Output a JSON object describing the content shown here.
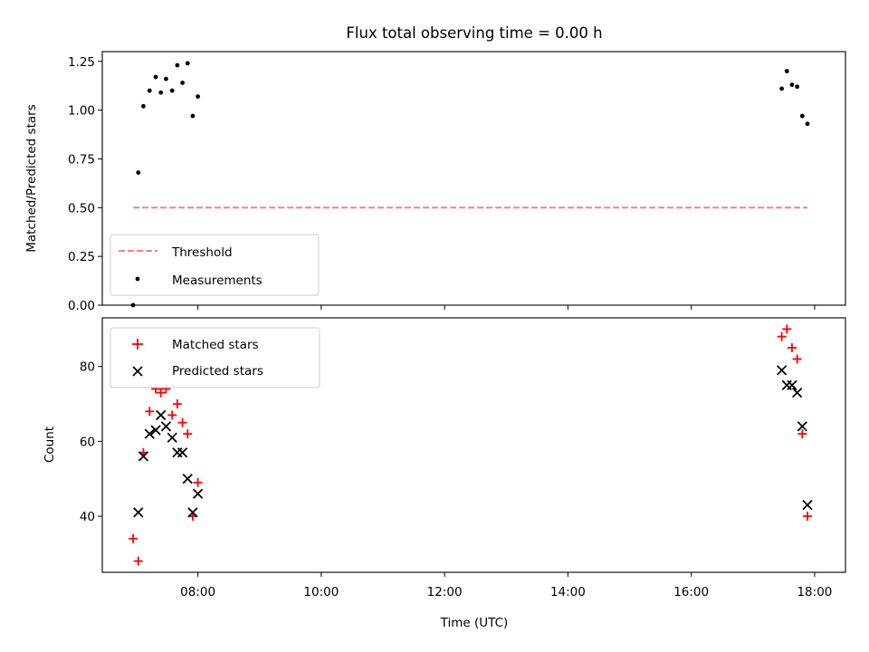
{
  "chart_data": {
    "title": "Flux total observing time = 0.00 h",
    "xlabel": "Time (UTC)",
    "x_ticks": [
      "08:00",
      "10:00",
      "12:00",
      "14:00",
      "16:00",
      "18:00"
    ],
    "xlim": [
      "06:27",
      "18:30"
    ],
    "panels": [
      {
        "type": "scatter",
        "ylabel": "Matched/Predicted stars",
        "ylim": [
          0,
          1.3
        ],
        "y_ticks": [
          "0.00",
          "0.25",
          "0.50",
          "0.75",
          "1.00",
          "1.25"
        ],
        "legend_position": "lower-left",
        "threshold": {
          "name": "Threshold",
          "value": 0.5,
          "x_start": "06:57",
          "x_end": "17:53",
          "color": "#ff7f7f"
        },
        "series": [
          {
            "name": "Measurements",
            "color": "#000000",
            "points": [
              {
                "x": "06:57",
                "y": 0.0
              },
              {
                "x": "07:02",
                "y": 0.68
              },
              {
                "x": "07:07",
                "y": 1.02
              },
              {
                "x": "07:13",
                "y": 1.1
              },
              {
                "x": "07:19",
                "y": 1.17
              },
              {
                "x": "07:24",
                "y": 1.09
              },
              {
                "x": "07:29",
                "y": 1.16
              },
              {
                "x": "07:35",
                "y": 1.1
              },
              {
                "x": "07:40",
                "y": 1.23
              },
              {
                "x": "07:45",
                "y": 1.14
              },
              {
                "x": "07:50",
                "y": 1.24
              },
              {
                "x": "07:55",
                "y": 0.97
              },
              {
                "x": "08:00",
                "y": 1.07
              },
              {
                "x": "17:28",
                "y": 1.11
              },
              {
                "x": "17:33",
                "y": 1.2
              },
              {
                "x": "17:38",
                "y": 1.13
              },
              {
                "x": "17:43",
                "y": 1.12
              },
              {
                "x": "17:48",
                "y": 0.97
              },
              {
                "x": "17:53",
                "y": 0.93
              }
            ]
          }
        ]
      },
      {
        "type": "scatter",
        "ylabel": "Count",
        "ylim": [
          25,
          93
        ],
        "y_ticks": [
          "40",
          "60",
          "80"
        ],
        "legend_position": "upper-left",
        "series": [
          {
            "name": "Matched stars",
            "marker": "plus",
            "color": "#ff0000",
            "points": [
              {
                "x": "06:57",
                "y": 34
              },
              {
                "x": "07:02",
                "y": 28
              },
              {
                "x": "07:07",
                "y": 57
              },
              {
                "x": "07:13",
                "y": 68
              },
              {
                "x": "07:19",
                "y": 74
              },
              {
                "x": "07:24",
                "y": 73
              },
              {
                "x": "07:29",
                "y": 74
              },
              {
                "x": "07:35",
                "y": 67
              },
              {
                "x": "07:40",
                "y": 70
              },
              {
                "x": "07:45",
                "y": 65
              },
              {
                "x": "07:50",
                "y": 62
              },
              {
                "x": "07:55",
                "y": 40
              },
              {
                "x": "08:00",
                "y": 49
              },
              {
                "x": "17:28",
                "y": 88
              },
              {
                "x": "17:33",
                "y": 90
              },
              {
                "x": "17:38",
                "y": 85
              },
              {
                "x": "17:43",
                "y": 82
              },
              {
                "x": "17:48",
                "y": 62
              },
              {
                "x": "17:53",
                "y": 40
              }
            ]
          },
          {
            "name": "Predicted stars",
            "marker": "x",
            "color": "#000000",
            "points": [
              {
                "x": "07:02",
                "y": 41
              },
              {
                "x": "07:07",
                "y": 56
              },
              {
                "x": "07:13",
                "y": 62
              },
              {
                "x": "07:19",
                "y": 63
              },
              {
                "x": "07:24",
                "y": 67
              },
              {
                "x": "07:29",
                "y": 64
              },
              {
                "x": "07:35",
                "y": 61
              },
              {
                "x": "07:40",
                "y": 57
              },
              {
                "x": "07:45",
                "y": 57
              },
              {
                "x": "07:50",
                "y": 50
              },
              {
                "x": "07:55",
                "y": 41
              },
              {
                "x": "08:00",
                "y": 46
              },
              {
                "x": "17:28",
                "y": 79
              },
              {
                "x": "17:33",
                "y": 75
              },
              {
                "x": "17:38",
                "y": 75
              },
              {
                "x": "17:43",
                "y": 73
              },
              {
                "x": "17:48",
                "y": 64
              },
              {
                "x": "17:53",
                "y": 43
              }
            ]
          }
        ]
      }
    ]
  }
}
